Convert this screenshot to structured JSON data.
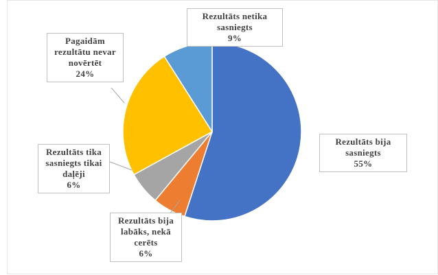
{
  "chart_data": {
    "type": "pie",
    "categories": [
      "Rezultāts bija sasniegts",
      "Rezultāts bija labāks, nekā cerēts",
      "Rezultāts tika sasniegts tikai daļēji",
      "Pagaidām rezultātu nevar novērtēt",
      "Rezultāts netika sasniegts"
    ],
    "values": [
      55,
      6,
      6,
      24,
      9
    ],
    "value_labels": [
      "55%",
      "6%",
      "6%",
      "24%",
      "9%"
    ],
    "colors": [
      "#4472c4",
      "#ed7d31",
      "#a5a5a5",
      "#ffc000",
      "#5b9bd5"
    ]
  }
}
